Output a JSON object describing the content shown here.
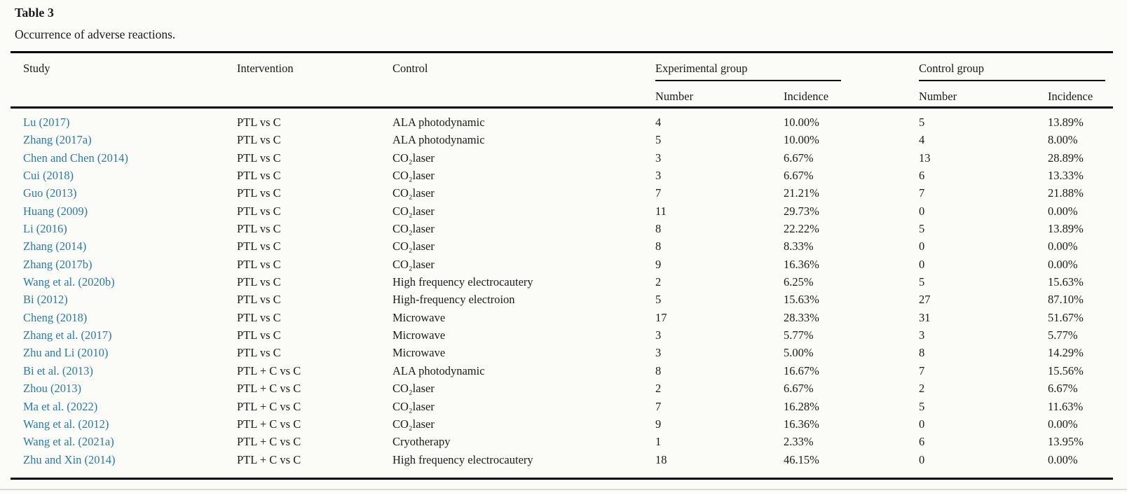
{
  "page": {
    "background": "#fbfbf8",
    "link_color": "#2a7ba3"
  },
  "table": {
    "title": "Table 3",
    "caption": "Occurrence of adverse reactions.",
    "columns": {
      "study": "Study",
      "intervention": "Intervention",
      "control": "Control",
      "experimental_group": "Experimental group",
      "control_group": "Control group",
      "number": "Number",
      "incidence": "Incidence"
    },
    "rows": [
      {
        "study": "Lu (2017)",
        "intervention": "PTL vs C",
        "control": "ALA photodynamic",
        "exp_number": "4",
        "exp_incidence": "10.00%",
        "ctrl_number": "5",
        "ctrl_incidence": "13.89%"
      },
      {
        "study": "Zhang (2017a)",
        "intervention": "PTL vs C",
        "control": "ALA photodynamic",
        "exp_number": "5",
        "exp_incidence": "10.00%",
        "ctrl_number": "4",
        "ctrl_incidence": "8.00%"
      },
      {
        "study": "Chen and Chen (2014)",
        "intervention": "PTL vs C",
        "control": "CO₂laser",
        "exp_number": "3",
        "exp_incidence": "6.67%",
        "ctrl_number": "13",
        "ctrl_incidence": "28.89%"
      },
      {
        "study": "Cui (2018)",
        "intervention": "PTL vs C",
        "control": "CO₂laser",
        "exp_number": "3",
        "exp_incidence": "6.67%",
        "ctrl_number": "6",
        "ctrl_incidence": "13.33%"
      },
      {
        "study": "Guo (2013)",
        "intervention": "PTL vs C",
        "control": "CO₂laser",
        "exp_number": "7",
        "exp_incidence": "21.21%",
        "ctrl_number": "7",
        "ctrl_incidence": "21.88%"
      },
      {
        "study": "Huang (2009)",
        "intervention": "PTL vs C",
        "control": "CO₂laser",
        "exp_number": "11",
        "exp_incidence": "29.73%",
        "ctrl_number": "0",
        "ctrl_incidence": "0.00%"
      },
      {
        "study": "Li (2016)",
        "intervention": "PTL vs C",
        "control": "CO₂laser",
        "exp_number": "8",
        "exp_incidence": "22.22%",
        "ctrl_number": "5",
        "ctrl_incidence": "13.89%"
      },
      {
        "study": "Zhang (2014)",
        "intervention": "PTL vs C",
        "control": "CO₂laser",
        "exp_number": "8",
        "exp_incidence": "8.33%",
        "ctrl_number": "0",
        "ctrl_incidence": "0.00%"
      },
      {
        "study": "Zhang (2017b)",
        "intervention": "PTL vs C",
        "control": "CO₂laser",
        "exp_number": "9",
        "exp_incidence": "16.36%",
        "ctrl_number": "0",
        "ctrl_incidence": "0.00%"
      },
      {
        "study": "Wang et al. (2020b)",
        "intervention": "PTL vs C",
        "control": "High frequency electrocautery",
        "exp_number": "2",
        "exp_incidence": "6.25%",
        "ctrl_number": "5",
        "ctrl_incidence": "15.63%"
      },
      {
        "study": "Bi (2012)",
        "intervention": "PTL vs C",
        "control": "High-frequency electroion",
        "exp_number": "5",
        "exp_incidence": "15.63%",
        "ctrl_number": "27",
        "ctrl_incidence": "87.10%"
      },
      {
        "study": "Cheng (2018)",
        "intervention": "PTL vs C",
        "control": "Microwave",
        "exp_number": "17",
        "exp_incidence": "28.33%",
        "ctrl_number": "31",
        "ctrl_incidence": "51.67%"
      },
      {
        "study": "Zhang et al. (2017)",
        "intervention": "PTL vs C",
        "control": "Microwave",
        "exp_number": "3",
        "exp_incidence": "5.77%",
        "ctrl_number": "3",
        "ctrl_incidence": "5.77%"
      },
      {
        "study": "Zhu and Li (2010)",
        "intervention": "PTL vs C",
        "control": "Microwave",
        "exp_number": "3",
        "exp_incidence": "5.00%",
        "ctrl_number": "8",
        "ctrl_incidence": "14.29%"
      },
      {
        "study": "Bi et al. (2013)",
        "intervention": "PTL + C vs C",
        "control": "ALA photodynamic",
        "exp_number": "8",
        "exp_incidence": "16.67%",
        "ctrl_number": "7",
        "ctrl_incidence": "15.56%"
      },
      {
        "study": "Zhou (2013)",
        "intervention": "PTL + C vs C",
        "control": "CO₂laser",
        "exp_number": "2",
        "exp_incidence": "6.67%",
        "ctrl_number": "2",
        "ctrl_incidence": "6.67%"
      },
      {
        "study": "Ma et al. (2022)",
        "intervention": "PTL + C vs C",
        "control": "CO₂laser",
        "exp_number": "7",
        "exp_incidence": "16.28%",
        "ctrl_number": "5",
        "ctrl_incidence": "11.63%"
      },
      {
        "study": "Wang et al. (2012)",
        "intervention": "PTL + C vs C",
        "control": "CO₂laser",
        "exp_number": "9",
        "exp_incidence": "16.36%",
        "ctrl_number": "0",
        "ctrl_incidence": "0.00%"
      },
      {
        "study": "Wang et al. (2021a)",
        "intervention": "PTL + C vs C",
        "control": "Cryotherapy",
        "exp_number": "1",
        "exp_incidence": "2.33%",
        "ctrl_number": "6",
        "ctrl_incidence": "13.95%"
      },
      {
        "study": "Zhu and Xin (2014)",
        "intervention": "PTL + C vs C",
        "control": "High frequency electrocautery",
        "exp_number": "18",
        "exp_incidence": "46.15%",
        "ctrl_number": "0",
        "ctrl_incidence": "0.00%"
      }
    ]
  }
}
